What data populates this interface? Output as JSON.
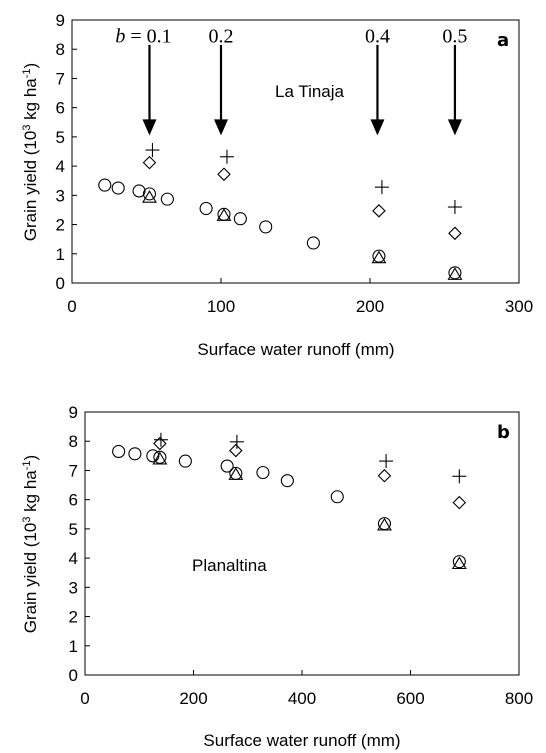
{
  "chart_data": [
    {
      "type": "scatter",
      "panel": "a",
      "site": "La Tinaja",
      "xlabel": "Surface water runoff (mm)",
      "ylabel": "Grain yield (10",
      "ylabel_sup1": "3",
      "ylabel_mid": " kg ha",
      "ylabel_sup2": "-1",
      "ylabel_end": ")",
      "xlim": [
        0,
        300
      ],
      "ylim": [
        0,
        9
      ],
      "x_ticks": [
        0,
        100,
        200,
        300
      ],
      "y_ticks": [
        0,
        1,
        2,
        3,
        4,
        5,
        6,
        7,
        8,
        9
      ],
      "arrows": [
        {
          "label": "b = 0.1",
          "x": 52
        },
        {
          "label": "0.2",
          "x": 100
        },
        {
          "label": "0.4",
          "x": 205
        },
        {
          "label": "0.5",
          "x": 257
        }
      ],
      "series": [
        {
          "marker": "circle",
          "points": [
            [
              22,
              3.35
            ],
            [
              31,
              3.25
            ],
            [
              45,
              3.15
            ],
            [
              52,
              3.05
            ],
            [
              64,
              2.87
            ],
            [
              90,
              2.55
            ],
            [
              102,
              2.35
            ],
            [
              113,
              2.2
            ],
            [
              130,
              1.92
            ],
            [
              162,
              1.37
            ],
            [
              206,
              0.92
            ],
            [
              257,
              0.35
            ]
          ]
        },
        {
          "marker": "triangle",
          "points": [
            [
              52,
              2.92
            ],
            [
              102,
              2.3
            ],
            [
              206,
              0.85
            ],
            [
              257,
              0.28
            ]
          ]
        },
        {
          "marker": "diamond",
          "points": [
            [
              52,
              4.12
            ],
            [
              102,
              3.72
            ],
            [
              206,
              2.47
            ],
            [
              257,
              1.7
            ]
          ]
        },
        {
          "marker": "plus",
          "points": [
            [
              54,
              4.55
            ],
            [
              104,
              4.32
            ],
            [
              208,
              3.28
            ],
            [
              257,
              2.6
            ]
          ]
        }
      ]
    },
    {
      "type": "scatter",
      "panel": "b",
      "site": "Planaltina",
      "xlabel": "Surface water runoff (mm)",
      "ylabel": "Grain yield (10",
      "ylabel_sup1": "3",
      "ylabel_mid": " kg ha",
      "ylabel_sup2": "-1",
      "ylabel_end": ")",
      "xlim": [
        0,
        800
      ],
      "ylim": [
        0,
        9
      ],
      "x_ticks": [
        0,
        200,
        400,
        600,
        800
      ],
      "y_ticks": [
        0,
        1,
        2,
        3,
        4,
        5,
        6,
        7,
        8,
        9
      ],
      "series": [
        {
          "marker": "circle",
          "points": [
            [
              62,
              7.65
            ],
            [
              92,
              7.57
            ],
            [
              125,
              7.5
            ],
            [
              138,
              7.45
            ],
            [
              185,
              7.32
            ],
            [
              262,
              7.15
            ],
            [
              278,
              6.9
            ],
            [
              328,
              6.93
            ],
            [
              373,
              6.65
            ],
            [
              465,
              6.1
            ],
            [
              552,
              5.18
            ],
            [
              690,
              3.88
            ]
          ]
        },
        {
          "marker": "triangle",
          "points": [
            [
              138,
              7.38
            ],
            [
              278,
              6.85
            ],
            [
              552,
              5.12
            ],
            [
              690,
              3.8
            ]
          ]
        },
        {
          "marker": "diamond",
          "points": [
            [
              138,
              7.92
            ],
            [
              278,
              7.68
            ],
            [
              552,
              6.82
            ],
            [
              690,
              5.9
            ]
          ]
        },
        {
          "marker": "plus",
          "points": [
            [
              140,
              8.05
            ],
            [
              280,
              7.98
            ],
            [
              555,
              7.32
            ],
            [
              690,
              6.8
            ]
          ]
        }
      ]
    }
  ]
}
